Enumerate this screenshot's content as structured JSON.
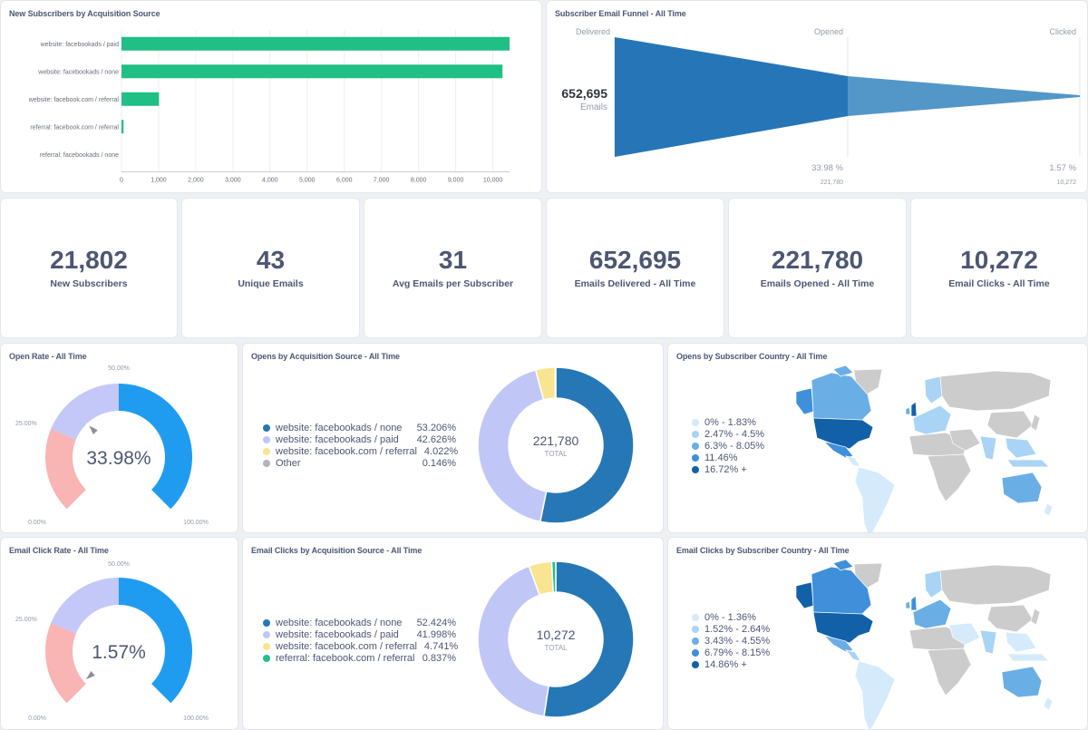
{
  "bar_card": {
    "title": "New Subscribers by Acquisition Source",
    "chart_data": {
      "type": "bar",
      "orientation": "horizontal",
      "categories": [
        "website: facebookads / paid",
        "website: facebookads / none",
        "website: facebook.com / referral",
        "referral: facebook.com / referral",
        "referral: facebookads / none"
      ],
      "values": [
        10450,
        10260,
        1010,
        55,
        0
      ],
      "xlim": [
        0,
        10450
      ],
      "ticks": [
        "0",
        "1,000",
        "2,000",
        "3,000",
        "4,000",
        "5,000",
        "6,000",
        "7,000",
        "8,000",
        "9,000",
        "10,000"
      ],
      "grid": true,
      "color": "#20bf86"
    }
  },
  "funnel_card": {
    "title": "Subscriber Email Funnel - All Time",
    "stages": [
      "Delivered",
      "Opened",
      "Clicked"
    ],
    "main_value": "652,695",
    "main_label": "Emails",
    "opened_pct": "33.98 %",
    "opened_count": "221,780",
    "clicked_pct": "1.57 %",
    "clicked_count": "10,272",
    "colors": [
      "#2676b7",
      "#5397c9"
    ]
  },
  "scalars": [
    {
      "value": "21,802",
      "label": "New Subscribers"
    },
    {
      "value": "43",
      "label": "Unique Emails"
    },
    {
      "value": "31",
      "label": "Avg Emails per Subscriber"
    },
    {
      "value": "652,695",
      "label": "Emails Delivered - All Time"
    },
    {
      "value": "221,780",
      "label": "Emails Opened - All Time"
    },
    {
      "value": "10,272",
      "label": "Email Clicks - All Time"
    }
  ],
  "gauge_open": {
    "title": "Open Rate - All Time",
    "value_text": "33.98%",
    "value": 0.3398,
    "labels": {
      "min": "0.00%",
      "q1": "25.00%",
      "mid": "50.00%",
      "max": "100.00%"
    },
    "colors": {
      "low": "#f9b4b4",
      "mid": "#c3c8f8",
      "high": "#1f9cf0"
    }
  },
  "gauge_click": {
    "title": "Email Click Rate - All Time",
    "value_text": "1.57%",
    "value": 0.0157,
    "labels": {
      "min": "0.00%",
      "q1": "25.00%",
      "mid": "50.00%",
      "max": "100.00%"
    },
    "colors": {
      "low": "#f9b4b4",
      "mid": "#c3c8f8",
      "high": "#1f9cf0"
    }
  },
  "donut_opens": {
    "title": "Opens by Acquisition Source - All Time",
    "total": "221,780",
    "total_label": "TOTAL",
    "chart_data": {
      "type": "pie",
      "slices": [
        {
          "name": "website: facebookads / none",
          "pct_text": "53.206%",
          "value": 53.206,
          "color": "#2677b5"
        },
        {
          "name": "website: facebookads / paid",
          "pct_text": "42.626%",
          "value": 42.626,
          "color": "#c0c7f6"
        },
        {
          "name": "website: facebook.com / referral",
          "pct_text": "4.022%",
          "value": 4.022,
          "color": "#f9e48f"
        },
        {
          "name": "Other",
          "pct_text": "0.146%",
          "value": 0.146,
          "color": "#b0b5bb"
        }
      ]
    }
  },
  "donut_clicks": {
    "title": "Email Clicks by Acquisition Source - All Time",
    "total": "10,272",
    "total_label": "TOTAL",
    "chart_data": {
      "type": "pie",
      "slices": [
        {
          "name": "website: facebookads / none",
          "pct_text": "52.424%",
          "value": 52.424,
          "color": "#2677b5"
        },
        {
          "name": "website: facebookads / paid",
          "pct_text": "41.998%",
          "value": 41.998,
          "color": "#c0c7f6"
        },
        {
          "name": "website: facebook.com / referral",
          "pct_text": "4.741%",
          "value": 4.741,
          "color": "#f9e48f"
        },
        {
          "name": "referral: facebook.com / referral",
          "pct_text": "0.837%",
          "value": 0.837,
          "color": "#20bf86"
        }
      ]
    }
  },
  "map_opens": {
    "title": "Opens by Subscriber Country - All Time",
    "legend": [
      {
        "label": "0% - 1.83%",
        "color": "#d5ebfb"
      },
      {
        "label": "2.47% - 4.5%",
        "color": "#a9d4f5"
      },
      {
        "label": "6.3% - 8.05%",
        "color": "#6aaee6"
      },
      {
        "label": "11.46%",
        "color": "#3f8fdb"
      },
      {
        "label": "16.72% +",
        "color": "#1261a8"
      }
    ]
  },
  "map_clicks": {
    "title": "Email Clicks by Subscriber Country - All Time",
    "legend": [
      {
        "label": "0% - 1.36%",
        "color": "#d5ebfb"
      },
      {
        "label": "1.52% - 2.64%",
        "color": "#a9d4f5"
      },
      {
        "label": "3.43% - 4.55%",
        "color": "#6aaee6"
      },
      {
        "label": "6.79% - 8.15%",
        "color": "#3f8fdb"
      },
      {
        "label": "14.86% +",
        "color": "#1261a8"
      }
    ]
  }
}
